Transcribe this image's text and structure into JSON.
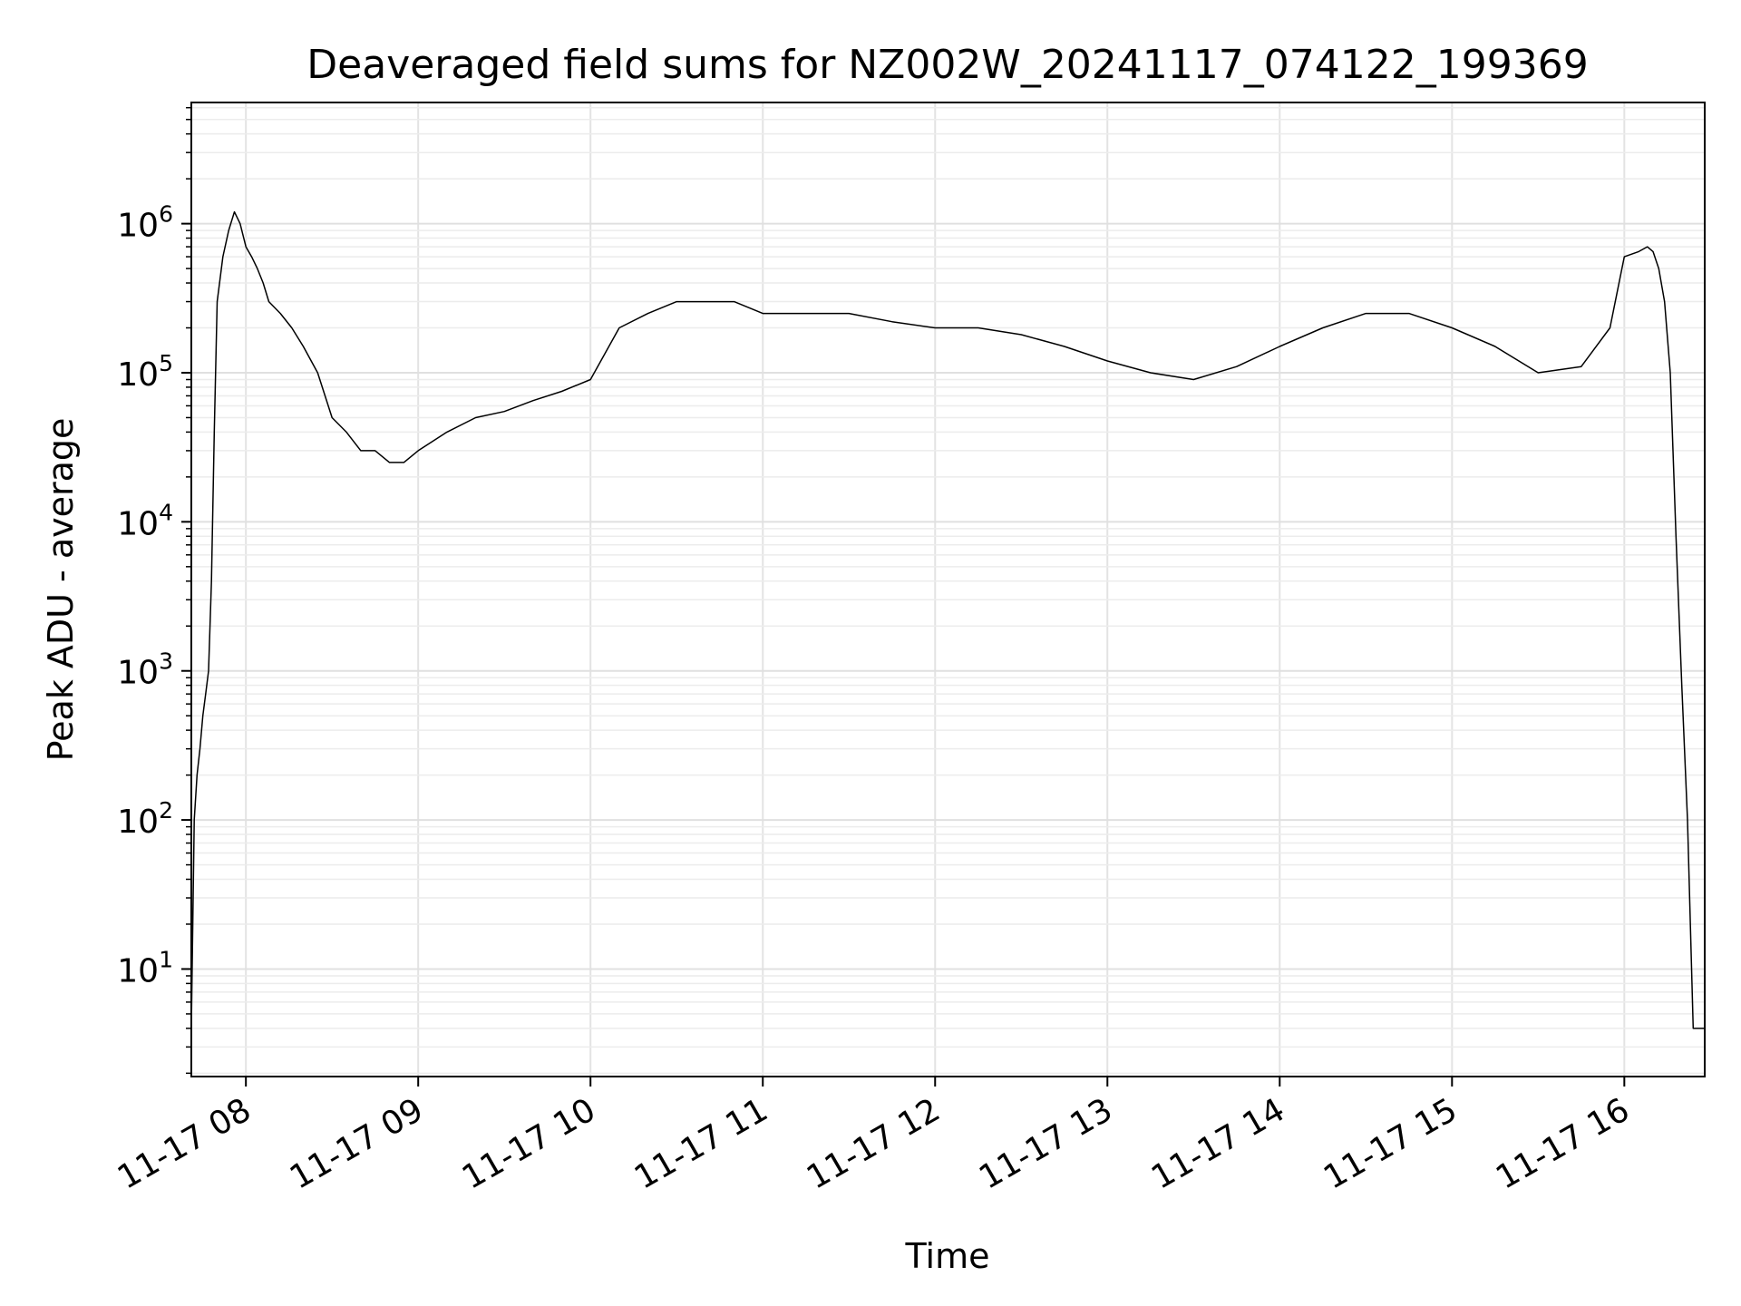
{
  "chart_data": {
    "type": "line",
    "title": "Deaveraged field sums for NZ002W_20241117_074122_199369",
    "xlabel": "Time",
    "ylabel": "Peak ADU - average",
    "x_ticks": [
      "11-17 08",
      "11-17 09",
      "11-17 10",
      "11-17 11",
      "11-17 12",
      "11-17 13",
      "11-17 14",
      "11-17 15",
      "11-17 16"
    ],
    "y_ticks": [
      {
        "base": "10",
        "exp": "1"
      },
      {
        "base": "10",
        "exp": "2"
      },
      {
        "base": "10",
        "exp": "3"
      },
      {
        "base": "10",
        "exp": "4"
      },
      {
        "base": "10",
        "exp": "5"
      },
      {
        "base": "10",
        "exp": "6"
      }
    ],
    "xlim": [
      "2024-11-17 07:41",
      "2024-11-17 16:28"
    ],
    "ylim": [
      1.9,
      6500000
    ],
    "yscale": "log",
    "grid": true,
    "legend": "none",
    "line_color": "#000000",
    "series": [
      {
        "x": [
          "07:41",
          "07:42",
          "07:43",
          "07:44",
          "07:45",
          "07:46",
          "07:47",
          "07:48",
          "07:49",
          "07:50",
          "07:52",
          "07:54",
          "07:56",
          "07:58",
          "08:00",
          "08:02",
          "08:04",
          "08:06",
          "08:08",
          "08:12",
          "08:16",
          "08:20",
          "08:25",
          "08:30",
          "08:35",
          "08:40",
          "08:45",
          "08:50",
          "08:55",
          "09:00",
          "09:10",
          "09:20",
          "09:30",
          "09:40",
          "09:50",
          "10:00",
          "10:10",
          "10:20",
          "10:30",
          "10:40",
          "10:50",
          "11:00",
          "11:15",
          "11:30",
          "11:45",
          "12:00",
          "12:15",
          "12:30",
          "12:45",
          "13:00",
          "13:15",
          "13:30",
          "13:45",
          "14:00",
          "14:15",
          "14:30",
          "14:45",
          "15:00",
          "15:15",
          "15:30",
          "15:45",
          "15:55",
          "16:00",
          "16:05",
          "16:08",
          "16:10",
          "16:12",
          "16:14",
          "16:16",
          "16:18",
          "16:20",
          "16:22",
          "16:24",
          "16:26",
          "16:28"
        ],
        "y": [
          4,
          100,
          200,
          300,
          500,
          700,
          1000,
          4000,
          40000,
          300000,
          600000,
          900000,
          1200000,
          1000000,
          700000,
          600000,
          500000,
          400000,
          300000,
          250000,
          200000,
          150000,
          100000,
          50000,
          40000,
          30000,
          30000,
          25000,
          25000,
          30000,
          40000,
          50000,
          55000,
          65000,
          75000,
          90000,
          200000,
          250000,
          300000,
          300000,
          300000,
          250000,
          250000,
          250000,
          220000,
          200000,
          200000,
          180000,
          150000,
          120000,
          100000,
          90000,
          110000,
          150000,
          200000,
          250000,
          250000,
          200000,
          150000,
          100000,
          110000,
          200000,
          600000,
          650000,
          700000,
          650000,
          500000,
          300000,
          100000,
          8000,
          800,
          100,
          4,
          4,
          4
        ]
      }
    ]
  }
}
